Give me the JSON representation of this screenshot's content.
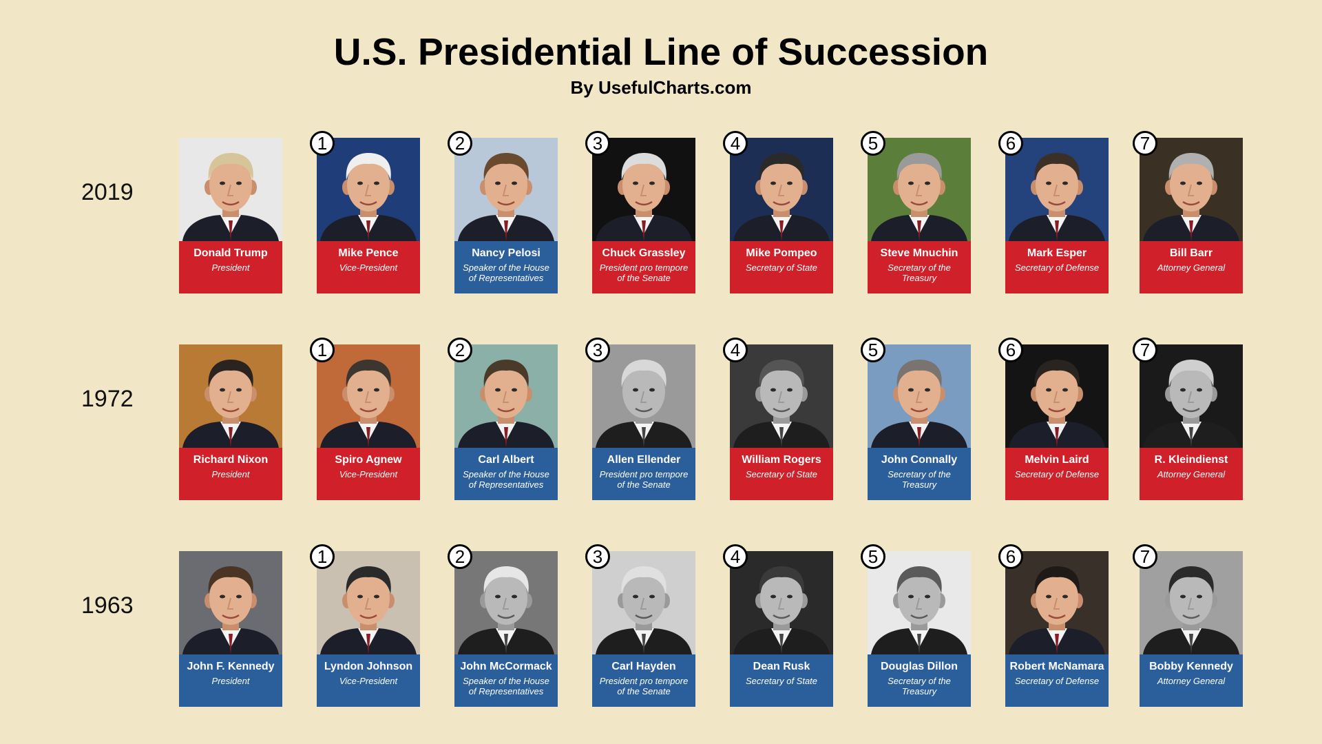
{
  "title": "U.S. Presidential Line of Succession",
  "subtitle": "By UsefulCharts.com",
  "rows": [
    {
      "year": "2019",
      "people": [
        {
          "name": "Donald Trump",
          "role": "President",
          "color": "red",
          "tone": "color",
          "hair": "#d7c59a",
          "bg": "#e8e8e8"
        },
        {
          "rank": "1",
          "name": "Mike Pence",
          "role": "Vice-President",
          "color": "red",
          "tone": "color",
          "hair": "#efefef",
          "bg": "#1f3d78"
        },
        {
          "rank": "2",
          "name": "Nancy Pelosi",
          "role": "Speaker of the House of Representatives",
          "color": "blue",
          "tone": "color",
          "hair": "#6a4a2e",
          "bg": "#b8c8d8"
        },
        {
          "rank": "3",
          "name": "Chuck Grassley",
          "role": "President pro tempore of the Senate",
          "color": "red",
          "tone": "color",
          "hair": "#dcdcdc",
          "bg": "#111111"
        },
        {
          "rank": "4",
          "name": "Mike Pompeo",
          "role": "Secretary of State",
          "color": "red",
          "tone": "color",
          "hair": "#2a2a2a",
          "bg": "#1d2e55"
        },
        {
          "rank": "5",
          "name": "Steve Mnuchin",
          "role": "Secretary of the Treasury",
          "color": "red",
          "tone": "color",
          "hair": "#9a9a9a",
          "bg": "#5b7f3a"
        },
        {
          "rank": "6",
          "name": "Mark Esper",
          "role": "Secretary of Defense",
          "color": "red",
          "tone": "color",
          "hair": "#3a3028",
          "bg": "#24437d"
        },
        {
          "rank": "7",
          "name": "Bill Barr",
          "role": "Attorney General",
          "color": "red",
          "tone": "color",
          "hair": "#b0b0b0",
          "bg": "#3b3024"
        }
      ]
    },
    {
      "year": "1972",
      "people": [
        {
          "name": "Richard Nixon",
          "role": "President",
          "color": "red",
          "tone": "color",
          "hair": "#2a2320",
          "bg": "#b87a35"
        },
        {
          "rank": "1",
          "name": "Spiro Agnew",
          "role": "Vice-President",
          "color": "red",
          "tone": "color",
          "hair": "#3c3530",
          "bg": "#c06a3a"
        },
        {
          "rank": "2",
          "name": "Carl Albert",
          "role": "Speaker of the House of Representatives",
          "color": "blue",
          "tone": "color",
          "hair": "#4a3a2a",
          "bg": "#8ab0a8"
        },
        {
          "rank": "3",
          "name": "Allen Ellender",
          "role": "President pro tempore of the Senate",
          "color": "blue",
          "tone": "bw",
          "hair": "#d8d8d8",
          "bg": "#9a9a9a"
        },
        {
          "rank": "4",
          "name": "William Rogers",
          "role": "Secretary of State",
          "color": "red",
          "tone": "bw",
          "hair": "#555555",
          "bg": "#3a3a3a"
        },
        {
          "rank": "5",
          "name": "John Connally",
          "role": "Secretary of the Treasury",
          "color": "blue",
          "tone": "color",
          "hair": "#7a7470",
          "bg": "#7a9cc0"
        },
        {
          "rank": "6",
          "name": "Melvin Laird",
          "role": "Secretary of Defense",
          "color": "red",
          "tone": "color",
          "hair": "#2a2420",
          "bg": "#141414"
        },
        {
          "rank": "7",
          "name": "R. Kleindienst",
          "role": "Attorney General",
          "color": "red",
          "tone": "bw",
          "hair": "#cfcfcf",
          "bg": "#1a1a1a"
        }
      ]
    },
    {
      "year": "1963",
      "people": [
        {
          "name": "John F. Kennedy",
          "role": "President",
          "color": "blue",
          "tone": "color",
          "hair": "#4a3424",
          "bg": "#6b6b72"
        },
        {
          "rank": "1",
          "name": "Lyndon Johnson",
          "role": "Vice-President",
          "color": "blue",
          "tone": "color",
          "hair": "#2a2a2a",
          "bg": "#c9c0b2"
        },
        {
          "rank": "2",
          "name": "John McCormack",
          "role": "Speaker of the House of Representatives",
          "color": "blue",
          "tone": "bw",
          "hair": "#e6e6e6",
          "bg": "#777777"
        },
        {
          "rank": "3",
          "name": "Carl Hayden",
          "role": "President pro tempore of the Senate",
          "color": "blue",
          "tone": "bw",
          "hair": "#e0e0e0",
          "bg": "#cfcfcf"
        },
        {
          "rank": "4",
          "name": "Dean Rusk",
          "role": "Secretary of State",
          "color": "blue",
          "tone": "bw",
          "hair": "#3a3a3a",
          "bg": "#2a2a2a"
        },
        {
          "rank": "5",
          "name": "Douglas Dillon",
          "role": "Secretary of the Treasury",
          "color": "blue",
          "tone": "bw",
          "hair": "#5a5a5a",
          "bg": "#e9e9e9"
        },
        {
          "rank": "6",
          "name": "Robert McNamara",
          "role": "Secretary of Defense",
          "color": "blue",
          "tone": "color",
          "hair": "#1f1a18",
          "bg": "#3a302a"
        },
        {
          "rank": "7",
          "name": "Bobby Kennedy",
          "role": "Attorney General",
          "color": "blue",
          "tone": "bw",
          "hair": "#2a2a2a",
          "bg": "#a0a0a0"
        }
      ]
    }
  ],
  "colors": {
    "background": "#f1e6c6",
    "red": "#d0202a",
    "blue": "#2b5f9c"
  }
}
